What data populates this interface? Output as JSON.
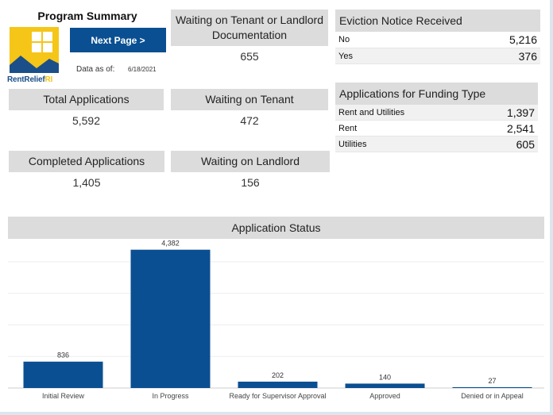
{
  "header": {
    "title": "Program Summary",
    "next_button": "Next Page >",
    "data_as_of_label": "Data as of:",
    "data_as_of_date": "6/18/2021",
    "logo_text_main": "RentRelief",
    "logo_text_accent": "RI"
  },
  "kpis": {
    "total": {
      "label": "Total Applications",
      "value": "5,592"
    },
    "completed": {
      "label": "Completed Applications",
      "value": "1,405"
    },
    "waiting_both": {
      "label": "Waiting on Tenant or Landlord Documentation",
      "value": "655"
    },
    "waiting_tenant": {
      "label": "Waiting on Tenant",
      "value": "472"
    },
    "waiting_landlord": {
      "label": "Waiting on Landlord",
      "value": "156"
    }
  },
  "eviction": {
    "title": "Eviction Notice Received",
    "rows": [
      {
        "label": "No",
        "value": "5,216"
      },
      {
        "label": "Yes",
        "value": "376"
      }
    ]
  },
  "funding": {
    "title": "Applications for Funding Type",
    "rows": [
      {
        "label": "Rent and Utilities",
        "value": "1,397"
      },
      {
        "label": "Rent",
        "value": "2,541"
      },
      {
        "label": "Utilities",
        "value": "605"
      }
    ]
  },
  "colors": {
    "bar": "#0a4f91",
    "button": "#0a4f91",
    "header_bg": "#dcdcdc",
    "logo_yellow": "#f5c518",
    "logo_blue": "#1b4f8a"
  },
  "chart_data": {
    "type": "bar",
    "title": "Application Status",
    "categories": [
      "Initial Review",
      "In Progress",
      "Ready for Supervisor Approval",
      "Approved",
      "Denied or in Appeal"
    ],
    "values": [
      836,
      4382,
      202,
      140,
      27
    ],
    "data_labels": [
      "836",
      "4,382",
      "202",
      "140",
      "27"
    ],
    "ylim": [
      0,
      4500
    ],
    "grid": true
  }
}
